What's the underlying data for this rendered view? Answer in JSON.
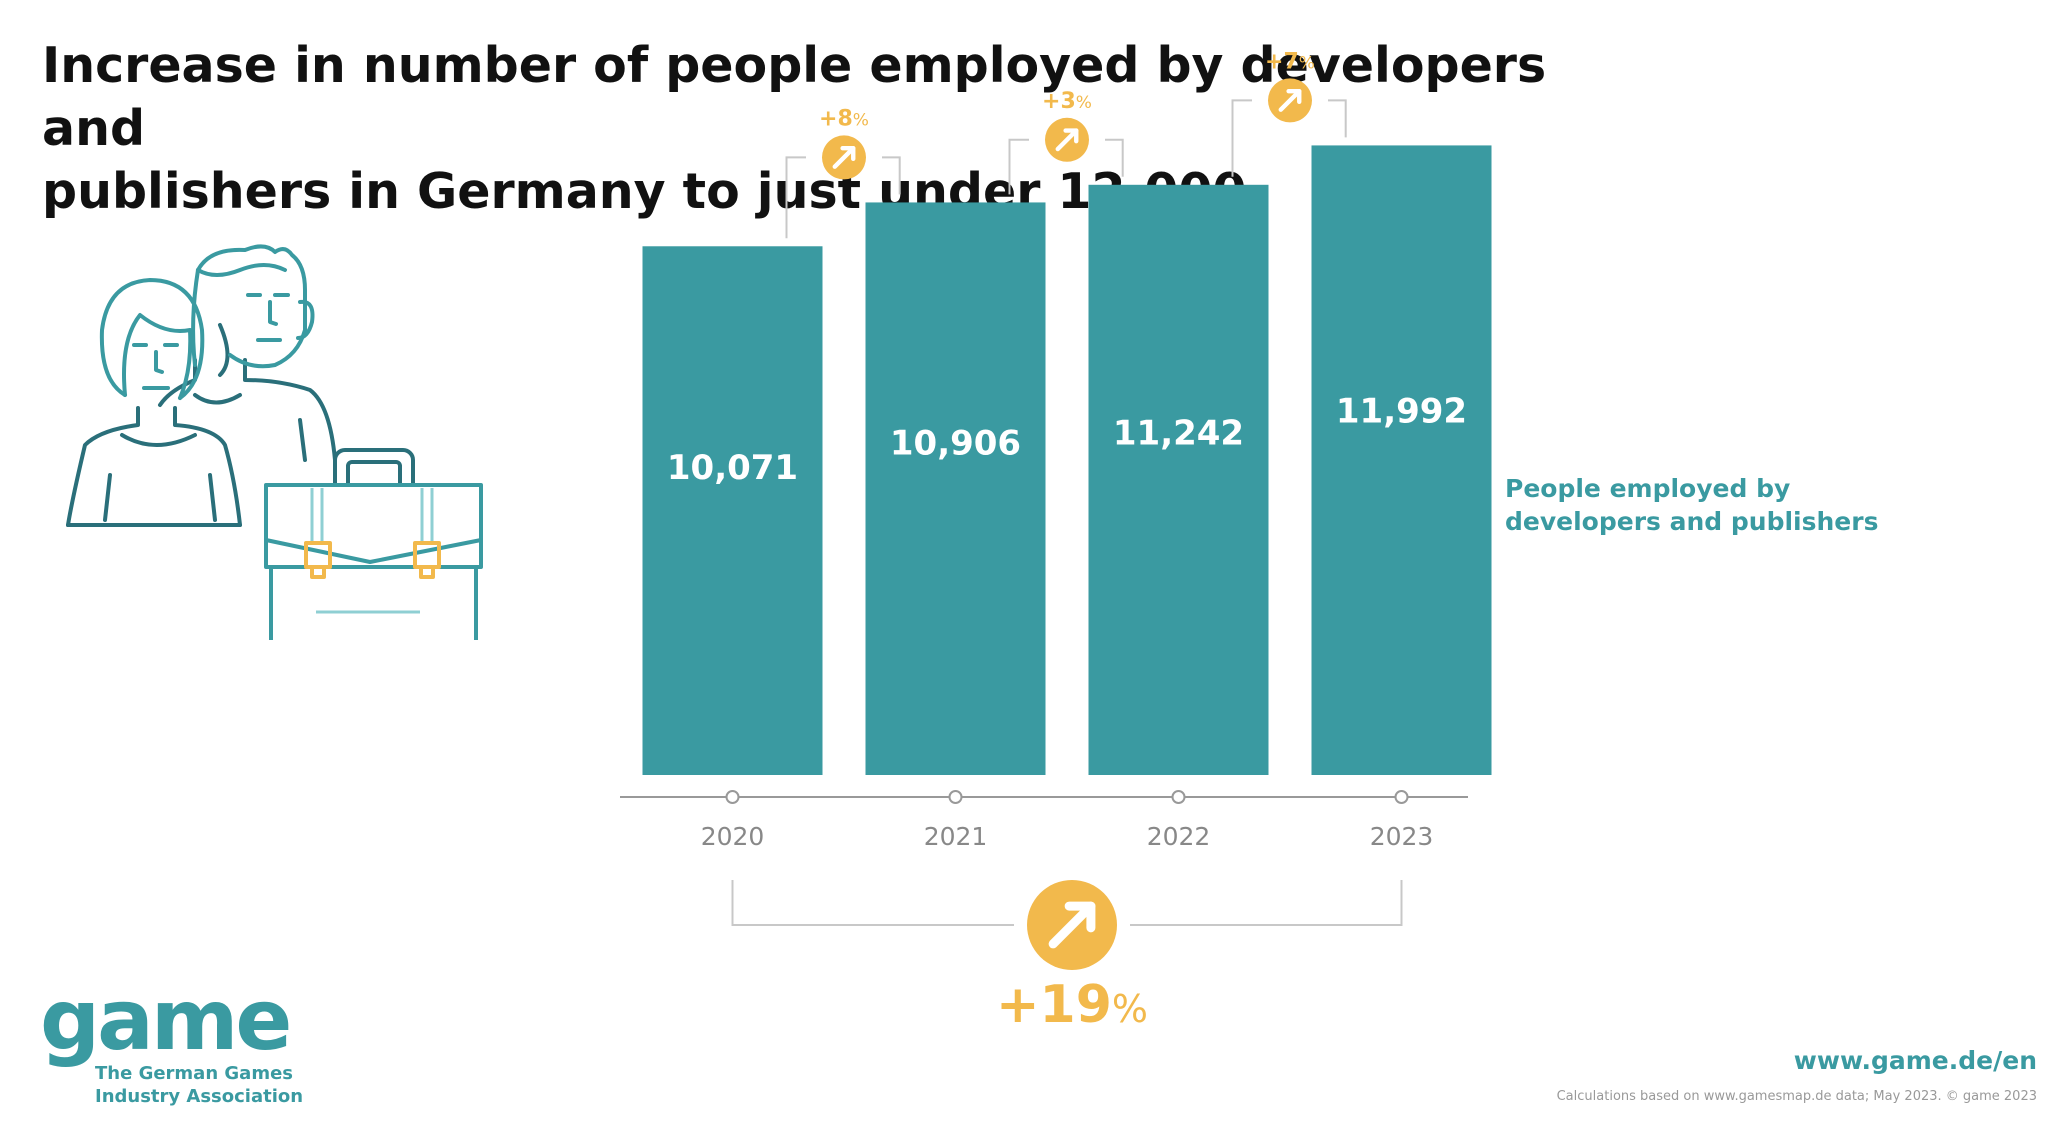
{
  "header": {
    "title_line1": "Increase in number of people employed by developers and",
    "title_line2": "publishers in Germany to just under 12,000"
  },
  "legend": {
    "line1": "People employed by",
    "line2": "developers and publishers"
  },
  "chart_data": {
    "type": "bar",
    "title": "Increase in number of people employed by developers and publishers in Germany to just under 12,000",
    "categories": [
      "2020",
      "2021",
      "2022",
      "2023"
    ],
    "values": [
      10071,
      10906,
      11242,
      11992
    ],
    "value_labels": [
      "10,071",
      "10,906",
      "11,242",
      "11,992"
    ],
    "series_name": "People employed by developers and publishers",
    "growth_labels": [
      {
        "value": "+8",
        "unit": "%"
      },
      {
        "value": "+3",
        "unit": "%"
      },
      {
        "value": "+7",
        "unit": "%"
      }
    ],
    "total_growth": {
      "value": "+19",
      "unit": "%"
    },
    "ylim": [
      0,
      12000
    ],
    "xlabel": "",
    "ylabel": "",
    "grid": false
  },
  "colors": {
    "bar": "#3a9aa1",
    "accent": "#f2b94c",
    "axis": "#999999",
    "tick_text": "#888888",
    "title": "#111111"
  },
  "branding": {
    "logo_text": "game",
    "tagline_line1": "The German Games",
    "tagline_line2": "Industry Association",
    "website": "www.game.de/en",
    "source": "Calculations based on www.gamesmap.de data; May 2023. © game 2023"
  },
  "icons": [
    "people-icon",
    "briefcase-icon",
    "arrow-up-right-icon"
  ]
}
